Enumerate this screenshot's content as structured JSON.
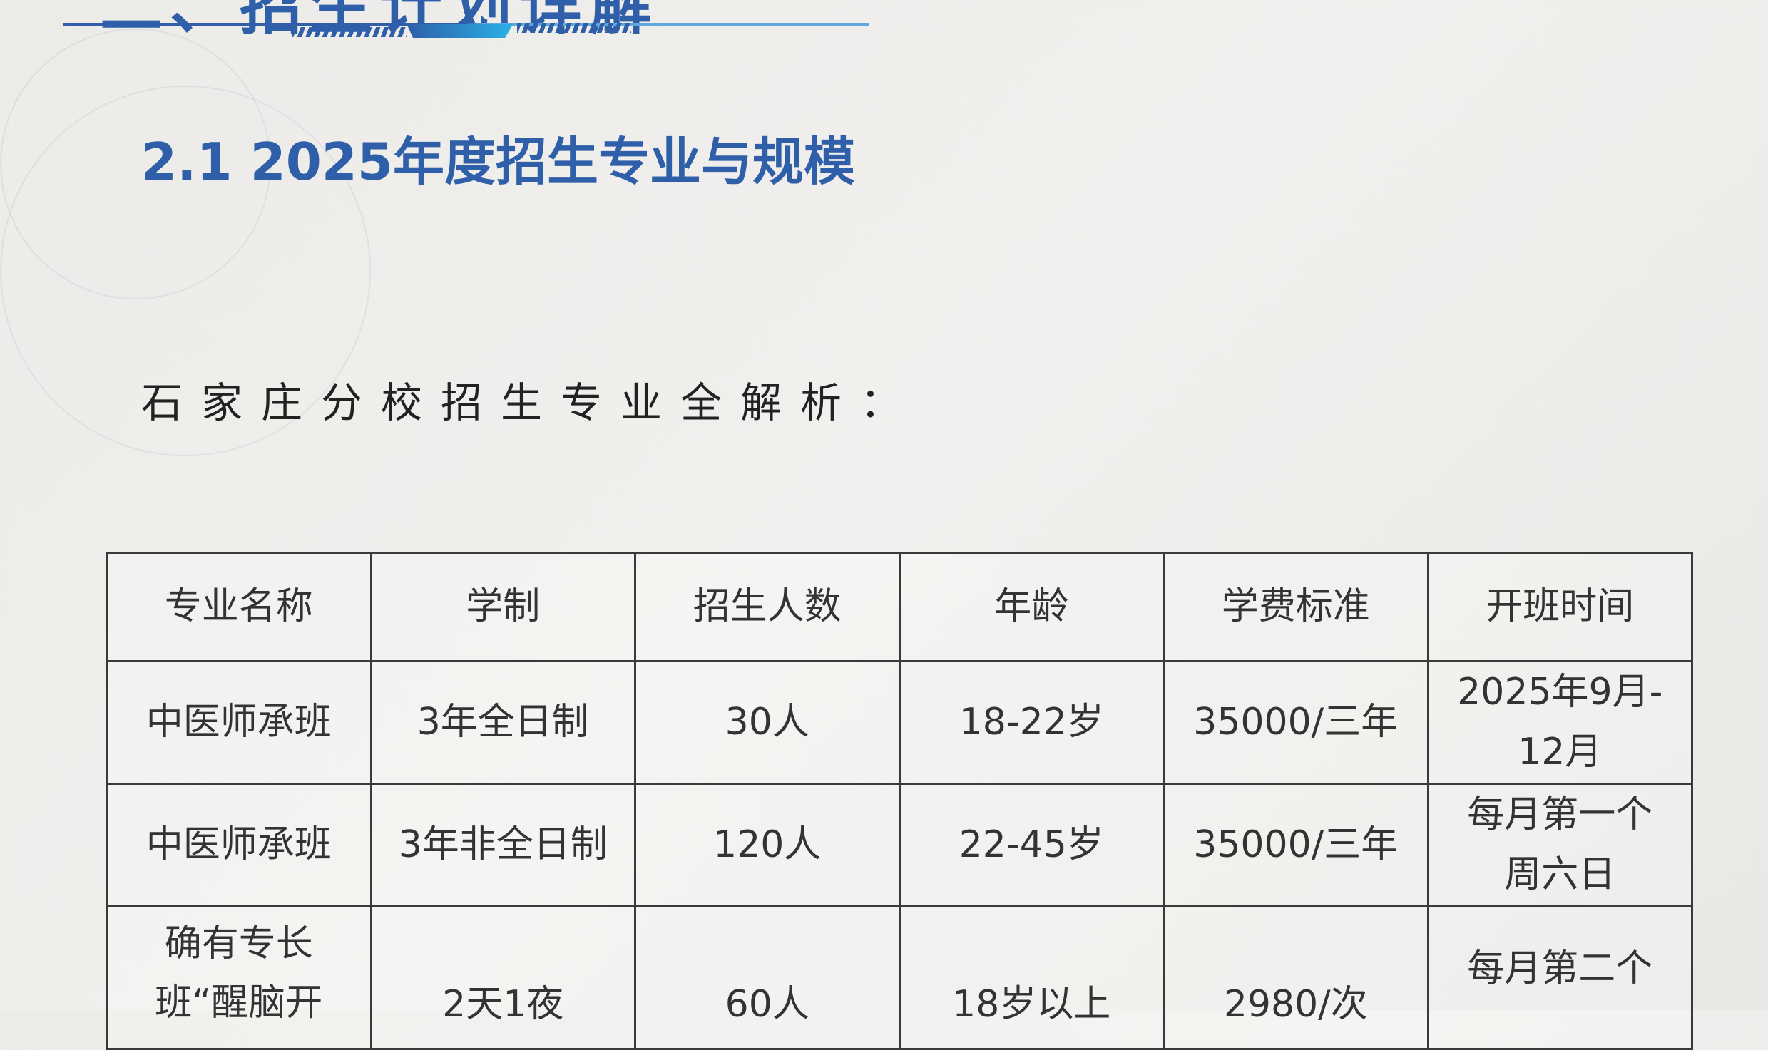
{
  "header": {
    "top_title_partial": "二、招生计划详解"
  },
  "section_title": "2.1 2025年度招生专业与规模",
  "subtitle": "石家庄分校招生专业全解析：",
  "table": {
    "headers": [
      "专业名称",
      "学制",
      "招生人数",
      "年龄",
      "学费标准",
      "开班时间"
    ],
    "rows": [
      [
        "中医师承班",
        "3年全日制",
        "30人",
        "18-22岁",
        "35000/三年",
        "2025年9月-12月"
      ],
      [
        "中医师承班",
        "3年非全日制",
        "120人",
        "22-45岁",
        "35000/三年",
        "每月第一个周六日"
      ],
      [
        "确有专长班“醒脑开",
        "2天1夜",
        "60人",
        "18岁以上",
        "2980/次",
        "每月第二个"
      ]
    ]
  },
  "colors": {
    "accent": "#2e5fa8",
    "accent_light": "#29b1e6",
    "text": "#333333"
  }
}
